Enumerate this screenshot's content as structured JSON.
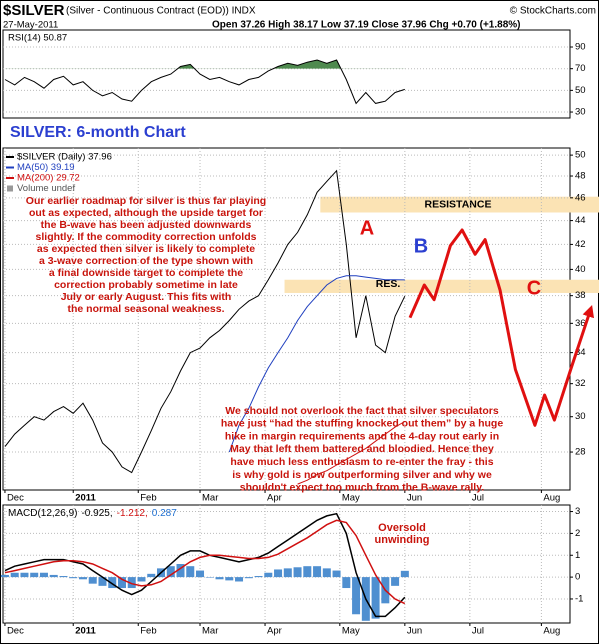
{
  "header": {
    "symbol": "$SILVER",
    "description": "(Silver - Continuous Contract (EOD)) INDX",
    "credit": "© StockCharts.com",
    "date": "27-May-2011",
    "quote": "Open 37.26 High 38.17 Low 37.19 Close 37.96 Chg +0.70 (+1.88%)"
  },
  "chart_data": [
    {
      "type": "line",
      "x": [
        0,
        3,
        6,
        9,
        12,
        15,
        18,
        21,
        24,
        27,
        30,
        33,
        36,
        39,
        42,
        45,
        48,
        51,
        54,
        57,
        60,
        63,
        66,
        69,
        72,
        75,
        78,
        81,
        84,
        87,
        90,
        93,
        96,
        99,
        102,
        105,
        108,
        111,
        114,
        117,
        120,
        123
      ],
      "xlim": [
        -0.6,
        173.8
      ],
      "ylim": [
        24.5,
        105.7
      ],
      "yticks": [
        30,
        50,
        70,
        90
      ],
      "grid": true,
      "series": [
        {
          "name": "RSI(14) 50.87",
          "color": "#000000",
          "fill_above": 70,
          "fill_color": "#4f8a4f",
          "values": [
            60,
            55,
            62,
            58,
            52,
            60,
            63,
            55,
            58,
            50,
            45,
            48,
            42,
            40,
            50,
            58,
            62,
            65,
            72,
            74,
            65,
            60,
            62,
            58,
            55,
            60,
            62,
            68,
            72,
            75,
            73,
            76,
            78,
            75,
            78,
            60,
            38,
            48,
            38,
            40,
            48,
            50.87
          ]
        }
      ]
    },
    {
      "type": "line",
      "title": "SILVER: 6-month Chart",
      "log": true,
      "x": [
        0,
        3,
        6,
        9,
        12,
        15,
        18,
        21,
        24,
        27,
        30,
        33,
        36,
        39,
        42,
        45,
        48,
        51,
        54,
        57,
        60,
        63,
        66,
        69,
        72,
        75,
        78,
        81,
        84,
        87,
        90,
        93,
        96,
        99,
        102,
        105,
        108,
        111,
        114,
        117,
        120,
        123
      ],
      "xlim": [
        -0.6,
        173.8
      ],
      "ylim": [
        26,
        50.7
      ],
      "yticks": [
        28,
        30,
        32,
        34,
        36,
        38,
        40,
        42,
        44,
        46,
        48,
        50
      ],
      "xticks": [
        {
          "value": 0,
          "label": "Dec"
        },
        {
          "value": 21,
          "label": "2011"
        },
        {
          "value": 41,
          "label": "Feb"
        },
        {
          "value": 60,
          "label": "Mar"
        },
        {
          "value": 80,
          "label": "Apr"
        },
        {
          "value": 103,
          "label": "May"
        },
        {
          "value": 123,
          "label": "Jun"
        },
        {
          "value": 143,
          "label": "Jul"
        },
        {
          "value": 165,
          "label": "Aug"
        }
      ],
      "grid": true,
      "series": [
        {
          "name": "$SILVER (Daily) 37.96",
          "color": "#000000",
          "values": [
            28.3,
            29.0,
            29.5,
            30.0,
            29.8,
            30.3,
            30.6,
            30.2,
            30.8,
            29.8,
            28.5,
            28.0,
            27.2,
            26.9,
            28.0,
            29.2,
            30.5,
            31.5,
            32.8,
            34.0,
            34.3,
            35.0,
            35.5,
            36.2,
            37.0,
            37.6,
            38.0,
            39.2,
            40.5,
            42.0,
            43.0,
            44.5,
            46.5,
            47.5,
            48.5,
            42.0,
            35.0,
            38.0,
            34.5,
            34.0,
            36.5,
            37.96
          ]
        },
        {
          "name": "MA(50) 39.19",
          "color": "#1f3fbf",
          "values": [
            null,
            null,
            null,
            null,
            null,
            null,
            null,
            null,
            null,
            null,
            null,
            null,
            null,
            null,
            null,
            null,
            null,
            null,
            null,
            null,
            null,
            null,
            null,
            28.0,
            29.5,
            30.5,
            31.8,
            33.0,
            34.0,
            35.0,
            36.2,
            37.2,
            38.0,
            38.8,
            39.3,
            39.5,
            39.5,
            39.4,
            39.3,
            39.2,
            39.2,
            39.19
          ]
        },
        {
          "name": "MA(200) 29.72",
          "color": "#d01010",
          "values": [
            null,
            null,
            null,
            null,
            null,
            null,
            null,
            null,
            null,
            null,
            null,
            null,
            null,
            null,
            null,
            null,
            null,
            null,
            null,
            null,
            null,
            null,
            null,
            null,
            null,
            null,
            null,
            null,
            null,
            null,
            26.3,
            26.5,
            26.8,
            27.0,
            27.3,
            27.6,
            27.9,
            28.2,
            28.6,
            29.0,
            29.4,
            29.72
          ]
        },
        {
          "color": "#e01010",
          "x": [
            124.6,
            129,
            132,
            137,
            140.6,
            144.6,
            147.7,
            152.3,
            157,
            163,
            166,
            169,
            174,
            180
          ],
          "values": [
            36.4,
            38.8,
            37.7,
            41.9,
            43.2,
            41.2,
            42.4,
            38.4,
            32.9,
            29.5,
            31.3,
            29.8,
            32.9,
            36.9
          ]
        }
      ],
      "extra_legend": "Volume undef",
      "bands": [
        {
          "label": "RESISTANCE",
          "range": [
            44.7,
            46.1
          ],
          "color": "#fbe3b4"
        },
        {
          "label": "RES.",
          "range": [
            38.2,
            39.2
          ],
          "color": "#fbe3b4"
        }
      ],
      "wave_labels": [
        {
          "text": "A",
          "color": "#e01010"
        },
        {
          "text": "B",
          "color": "#2b3fd0"
        },
        {
          "text": "C",
          "color": "#e01010"
        }
      ],
      "annotations": [
        [
          "Our earlier roadmap for silver is thus far playing",
          "out as expected, although the upside target for",
          "the B-wave has been adjusted downwards",
          "slightly. If the commodity correction unfolds",
          "as expected then silver is likely to complete",
          "a 3-wave correction of the type shown with",
          "a final downside target to complete the",
          "correction probably sometime in late",
          "July or early August. This fits with",
          "the normal seasonal weakness."
        ],
        [
          "We should not overlook the fact that silver speculators",
          "have just “had the stuffing knocked out them” by a huge",
          "hike in margin requirements and the 4-day rout early in",
          "May that left them battered and bloodied. Hence they",
          "have much less enthusiasm to re-enter the fray - this",
          "is why gold is now outperforming silver and why we",
          "shouldn't expect too much from the B-wave rally."
        ]
      ]
    },
    {
      "type": "combo",
      "label_parts": [
        {
          "text": "MACD(12,26,9)",
          "color": "#000000"
        },
        {
          "text": "-0.925,",
          "color": "#000000"
        },
        {
          "text": "-1.212,",
          "color": "#d01010"
        },
        {
          "text": "0.287",
          "color": "#1f6fd0"
        }
      ],
      "x": [
        0,
        3,
        6,
        9,
        12,
        15,
        18,
        21,
        24,
        27,
        30,
        33,
        36,
        39,
        42,
        45,
        48,
        51,
        54,
        57,
        60,
        63,
        66,
        69,
        72,
        75,
        78,
        81,
        84,
        87,
        90,
        93,
        96,
        99,
        102,
        105,
        108,
        111,
        114,
        117,
        120,
        123
      ],
      "xlim": [
        -0.6,
        173.8
      ],
      "ylim": [
        -2.1,
        3.3
      ],
      "yticks": [
        -1,
        0,
        1,
        2,
        3
      ],
      "xticks": [
        {
          "value": 0,
          "label": "Dec"
        },
        {
          "value": 21,
          "label": "2011"
        },
        {
          "value": 41,
          "label": "Feb"
        },
        {
          "value": 60,
          "label": "Mar"
        },
        {
          "value": 80,
          "label": "Apr"
        },
        {
          "value": 103,
          "label": "May"
        },
        {
          "value": 123,
          "label": "Jun"
        },
        {
          "value": 143,
          "label": "Jul"
        },
        {
          "value": 165,
          "label": "Aug"
        }
      ],
      "grid": true,
      "series": [
        {
          "type": "bar",
          "color": "#4f8fd0",
          "values": [
            0.1,
            0.2,
            0.2,
            0.2,
            0.2,
            0.1,
            0.05,
            -0.05,
            -0.1,
            -0.3,
            -0.4,
            -0.5,
            -0.5,
            -0.5,
            -0.2,
            0.15,
            0.4,
            0.5,
            0.6,
            0.5,
            0.3,
            0,
            -0.1,
            -0.15,
            -0.2,
            -0.05,
            0.05,
            0.2,
            0.35,
            0.4,
            0.45,
            0.5,
            0.5,
            0.4,
            0.3,
            -0.5,
            -1.7,
            -2.0,
            -1.9,
            -1.2,
            -0.4,
            0.287
          ]
        },
        {
          "type": "line",
          "color": "#000000",
          "values": [
            0.3,
            0.5,
            0.6,
            0.7,
            0.8,
            0.8,
            0.8,
            0.7,
            0.6,
            0.3,
            0,
            -0.3,
            -0.6,
            -0.8,
            -0.6,
            -0.2,
            0.2,
            0.6,
            1.0,
            1.2,
            1.2,
            1.0,
            0.9,
            0.8,
            0.7,
            0.8,
            0.9,
            1.1,
            1.4,
            1.7,
            2.0,
            2.3,
            2.6,
            2.8,
            2.9,
            2.0,
            0.2,
            -1.0,
            -1.8,
            -1.8,
            -1.4,
            -0.925
          ]
        },
        {
          "type": "line",
          "color": "#d01010",
          "values": [
            0.2,
            0.3,
            0.4,
            0.5,
            0.6,
            0.7,
            0.75,
            0.75,
            0.7,
            0.6,
            0.4,
            0.2,
            -0.1,
            -0.3,
            -0.4,
            -0.35,
            -0.2,
            0.1,
            0.4,
            0.7,
            0.9,
            1.0,
            1.0,
            0.95,
            0.9,
            0.85,
            0.85,
            0.9,
            1.05,
            1.3,
            1.55,
            1.8,
            2.1,
            2.4,
            2.6,
            2.5,
            1.9,
            1.0,
            0.1,
            -0.6,
            -1.0,
            -1.212
          ]
        }
      ],
      "note": [
        "Oversold",
        "unwinding"
      ],
      "note_color": "#c8140c"
    }
  ]
}
